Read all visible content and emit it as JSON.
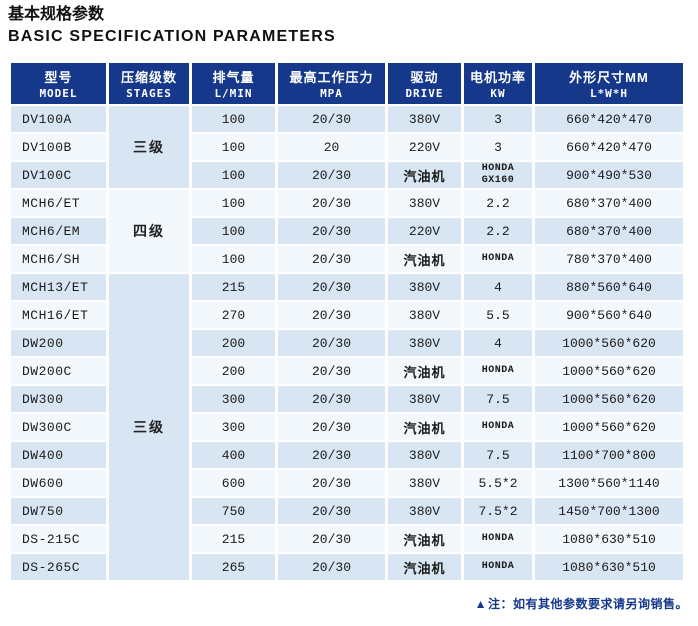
{
  "page": {
    "title_zh": "基本规格参数",
    "title_en": "BASIC SPECIFICATION PARAMETERS",
    "note_marker": "▲",
    "note_text": "注：如有其他参数要求请另询销售。"
  },
  "colors": {
    "header_bg": "#15388b",
    "row_odd_bg": "#d8e6f3",
    "row_even_bg": "#f3f8fc",
    "stage_bg": "#e9f1f9",
    "note_color": "#15388b"
  },
  "table": {
    "columns": [
      {
        "zh": "型号",
        "en": "MODEL"
      },
      {
        "zh": "压缩级数",
        "en": "STAGES"
      },
      {
        "zh": "排气量",
        "en": "L/MIN"
      },
      {
        "zh": "最高工作压力",
        "en": "MPA"
      },
      {
        "zh": "驱动",
        "en": "DRIVE"
      },
      {
        "zh": "电机功率",
        "en": "KW"
      },
      {
        "zh": "外形尺寸MM",
        "en": "L*W*H"
      }
    ],
    "stage_groups": [
      {
        "label": "三级",
        "rowspan": 3
      },
      {
        "label": "四级",
        "rowspan": 3
      },
      {
        "label": "三级",
        "rowspan": 11
      }
    ],
    "rows": [
      {
        "model": "DV100A",
        "displacement": "100",
        "pressure": "20/30",
        "drive": "380V",
        "power": "3",
        "dimensions": "660*420*470"
      },
      {
        "model": "DV100B",
        "displacement": "100",
        "pressure": "20",
        "drive": "220V",
        "power": "3",
        "dimensions": "660*420*470"
      },
      {
        "model": "DV100C",
        "displacement": "100",
        "pressure": "20/30",
        "drive": "汽油机",
        "power": "HONDA\nGX160",
        "dimensions": "900*490*530"
      },
      {
        "model": "MCH6/ET",
        "displacement": "100",
        "pressure": "20/30",
        "drive": "380V",
        "power": "2.2",
        "dimensions": "680*370*400"
      },
      {
        "model": "MCH6/EM",
        "displacement": "100",
        "pressure": "20/30",
        "drive": "220V",
        "power": "2.2",
        "dimensions": "680*370*400"
      },
      {
        "model": "MCH6/SH",
        "displacement": "100",
        "pressure": "20/30",
        "drive": "汽油机",
        "power": "HONDA",
        "dimensions": "780*370*400"
      },
      {
        "model": "MCH13/ET",
        "displacement": "215",
        "pressure": "20/30",
        "drive": "380V",
        "power": "4",
        "dimensions": "880*560*640"
      },
      {
        "model": "MCH16/ET",
        "displacement": "270",
        "pressure": "20/30",
        "drive": "380V",
        "power": "5.5",
        "dimensions": "900*560*640"
      },
      {
        "model": "DW200",
        "displacement": "200",
        "pressure": "20/30",
        "drive": "380V",
        "power": "4",
        "dimensions": "1000*560*620"
      },
      {
        "model": "DW200C",
        "displacement": "200",
        "pressure": "20/30",
        "drive": "汽油机",
        "power": "HONDA",
        "dimensions": "1000*560*620"
      },
      {
        "model": "DW300",
        "displacement": "300",
        "pressure": "20/30",
        "drive": "380V",
        "power": "7.5",
        "dimensions": "1000*560*620"
      },
      {
        "model": "DW300C",
        "displacement": "300",
        "pressure": "20/30",
        "drive": "汽油机",
        "power": "HONDA",
        "dimensions": "1000*560*620"
      },
      {
        "model": "DW400",
        "displacement": "400",
        "pressure": "20/30",
        "drive": "380V",
        "power": "7.5",
        "dimensions": "1100*700*800"
      },
      {
        "model": "DW600",
        "displacement": "600",
        "pressure": "20/30",
        "drive": "380V",
        "power": "5.5*2",
        "dimensions": "1300*560*1140"
      },
      {
        "model": "DW750",
        "displacement": "750",
        "pressure": "20/30",
        "drive": "380V",
        "power": "7.5*2",
        "dimensions": "1450*700*1300"
      },
      {
        "model": "DS-215C",
        "displacement": "215",
        "pressure": "20/30",
        "drive": "汽油机",
        "power": "HONDA",
        "dimensions": "1080*630*510"
      },
      {
        "model": "DS-265C",
        "displacement": "265",
        "pressure": "20/30",
        "drive": "汽油机",
        "power": "HONDA",
        "dimensions": "1080*630*510"
      }
    ]
  }
}
